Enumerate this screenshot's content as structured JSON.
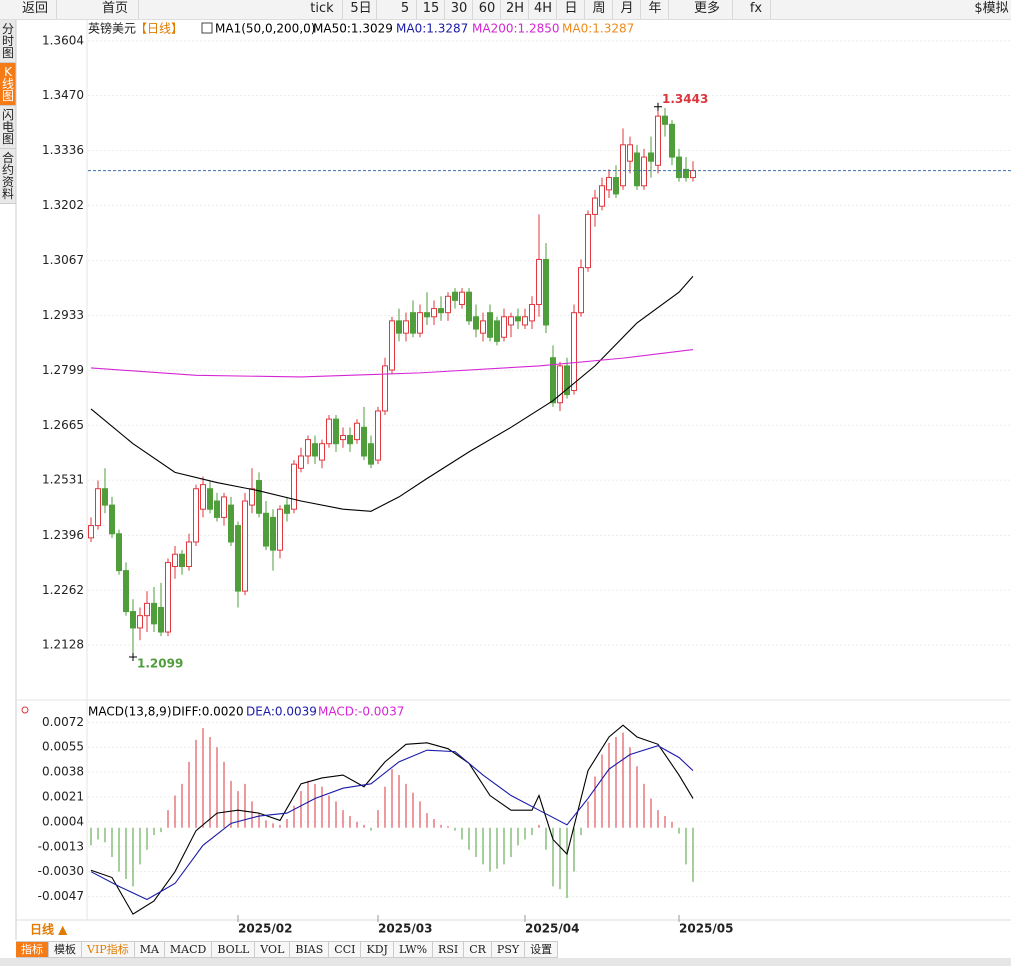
{
  "toolbar": {
    "items": [
      "返回",
      "首页",
      "tick",
      "5日",
      "5",
      "15",
      "30",
      "60",
      "2H",
      "4H",
      "日",
      "周",
      "月",
      "年",
      "更多",
      "fx",
      "$模拟"
    ]
  },
  "sidebar": {
    "items": [
      "分时图",
      "K线图",
      "闪电图",
      "合约资料"
    ],
    "active": 1
  },
  "chart_data": [
    {
      "type": "candlestick",
      "title": "英镑美元",
      "period": "【日线】",
      "legend": [
        {
          "label": "MA1(50,0,200,0)",
          "color": "#000000"
        },
        {
          "label": "MA50:1.3029",
          "color": "#000000"
        },
        {
          "label": "MA0:1.3287",
          "color": "#1a1aa8"
        },
        {
          "label": "MA200:1.2850",
          "color": "#d526d5"
        },
        {
          "label": "MA0:1.3287",
          "color": "#f08a1c"
        }
      ],
      "up_color": "#e0383e",
      "down_color": "#4f9e3b",
      "ohlc": [
        [
          1.239,
          1.244,
          1.238,
          1.242
        ],
        [
          1.242,
          1.253,
          1.241,
          1.251
        ],
        [
          1.251,
          1.256,
          1.245,
          1.247
        ],
        [
          1.247,
          1.249,
          1.239,
          1.24
        ],
        [
          1.24,
          1.241,
          1.23,
          1.231
        ],
        [
          1.231,
          1.233,
          1.22,
          1.221
        ],
        [
          1.221,
          1.224,
          1.2099,
          1.217
        ],
        [
          1.217,
          1.222,
          1.214,
          1.22
        ],
        [
          1.22,
          1.226,
          1.216,
          1.223
        ],
        [
          1.223,
          1.227,
          1.216,
          1.218
        ],
        [
          1.222,
          1.228,
          1.215,
          1.216
        ],
        [
          1.216,
          1.234,
          1.215,
          1.233
        ],
        [
          1.232,
          1.237,
          1.229,
          1.235
        ],
        [
          1.235,
          1.236,
          1.23,
          1.232
        ],
        [
          1.232,
          1.24,
          1.231,
          1.238
        ],
        [
          1.238,
          1.252,
          1.237,
          1.251
        ],
        [
          1.246,
          1.254,
          1.244,
          1.252
        ],
        [
          1.251,
          1.253,
          1.245,
          1.246
        ],
        [
          1.248,
          1.25,
          1.243,
          1.244
        ],
        [
          1.244,
          1.25,
          1.242,
          1.249
        ],
        [
          1.247,
          1.249,
          1.237,
          1.238
        ],
        [
          1.242,
          1.243,
          1.222,
          1.226
        ],
        [
          1.226,
          1.25,
          1.225,
          1.248
        ],
        [
          1.247,
          1.256,
          1.245,
          1.251
        ],
        [
          1.253,
          1.255,
          1.244,
          1.245
        ],
        [
          1.245,
          1.248,
          1.236,
          1.237
        ],
        [
          1.244,
          1.246,
          1.231,
          1.236
        ],
        [
          1.236,
          1.247,
          1.234,
          1.246
        ],
        [
          1.247,
          1.249,
          1.243,
          1.245
        ],
        [
          1.246,
          1.258,
          1.245,
          1.257
        ],
        [
          1.256,
          1.261,
          1.255,
          1.259
        ],
        [
          1.259,
          1.264,
          1.257,
          1.263
        ],
        [
          1.262,
          1.264,
          1.257,
          1.259
        ],
        [
          1.258,
          1.263,
          1.256,
          1.262
        ],
        [
          1.262,
          1.269,
          1.261,
          1.268
        ],
        [
          1.268,
          1.269,
          1.26,
          1.262
        ],
        [
          1.263,
          1.266,
          1.261,
          1.264
        ],
        [
          1.264,
          1.266,
          1.26,
          1.262
        ],
        [
          1.263,
          1.268,
          1.262,
          1.267
        ],
        [
          1.266,
          1.271,
          1.258,
          1.259
        ],
        [
          1.262,
          1.264,
          1.256,
          1.257
        ],
        [
          1.258,
          1.271,
          1.257,
          1.27
        ],
        [
          1.27,
          1.283,
          1.269,
          1.281
        ],
        [
          1.28,
          1.293,
          1.279,
          1.292
        ],
        [
          1.292,
          1.295,
          1.287,
          1.289
        ],
        [
          1.289,
          1.294,
          1.287,
          1.292
        ],
        [
          1.294,
          1.297,
          1.288,
          1.289
        ],
        [
          1.289,
          1.296,
          1.288,
          1.294
        ],
        [
          1.294,
          1.299,
          1.291,
          1.293
        ],
        [
          1.293,
          1.297,
          1.291,
          1.295
        ],
        [
          1.295,
          1.298,
          1.292,
          1.294
        ],
        [
          1.294,
          1.299,
          1.292,
          1.298
        ],
        [
          1.299,
          1.3,
          1.295,
          1.297
        ],
        [
          1.296,
          1.3,
          1.295,
          1.299
        ],
        [
          1.299,
          1.3,
          1.291,
          1.292
        ],
        [
          1.293,
          1.296,
          1.288,
          1.29
        ],
        [
          1.289,
          1.294,
          1.287,
          1.292
        ],
        [
          1.294,
          1.296,
          1.287,
          1.288
        ],
        [
          1.292,
          1.293,
          1.286,
          1.287
        ],
        [
          1.288,
          1.295,
          1.287,
          1.293
        ],
        [
          1.291,
          1.294,
          1.288,
          1.293
        ],
        [
          1.293,
          1.295,
          1.29,
          1.292
        ],
        [
          1.291,
          1.295,
          1.29,
          1.293
        ],
        [
          1.292,
          1.298,
          1.29,
          1.296
        ],
        [
          1.296,
          1.318,
          1.293,
          1.307
        ],
        [
          1.307,
          1.311,
          1.289,
          1.291
        ],
        [
          1.283,
          1.286,
          1.271,
          1.272
        ],
        [
          1.272,
          1.282,
          1.27,
          1.281
        ],
        [
          1.281,
          1.283,
          1.273,
          1.274
        ],
        [
          1.275,
          1.296,
          1.274,
          1.294
        ],
        [
          1.294,
          1.307,
          1.293,
          1.305
        ],
        [
          1.305,
          1.319,
          1.304,
          1.318
        ],
        [
          1.318,
          1.324,
          1.315,
          1.322
        ],
        [
          1.32,
          1.327,
          1.319,
          1.325
        ],
        [
          1.324,
          1.329,
          1.322,
          1.327
        ],
        [
          1.327,
          1.33,
          1.322,
          1.323
        ],
        [
          1.325,
          1.339,
          1.324,
          1.335
        ],
        [
          1.331,
          1.337,
          1.328,
          1.335
        ],
        [
          1.333,
          1.335,
          1.324,
          1.325
        ],
        [
          1.325,
          1.334,
          1.324,
          1.332
        ],
        [
          1.333,
          1.337,
          1.327,
          1.331
        ],
        [
          1.33,
          1.3443,
          1.328,
          1.342
        ],
        [
          1.342,
          1.344,
          1.337,
          1.34
        ],
        [
          1.34,
          1.341,
          1.33,
          1.332
        ],
        [
          1.332,
          1.334,
          1.326,
          1.327
        ],
        [
          1.329,
          1.332,
          1.326,
          1.327
        ],
        [
          1.327,
          1.331,
          1.326,
          1.3287
        ]
      ],
      "lines": [
        {
          "color": "#000000",
          "x": [
            0,
            6,
            12,
            18,
            24,
            30,
            36,
            40,
            44,
            48,
            54,
            60,
            66,
            72,
            78,
            84,
            86
          ],
          "values": [
            1.2705,
            1.262,
            1.255,
            1.2525,
            1.2505,
            1.248,
            1.246,
            1.2455,
            1.249,
            1.2535,
            1.26,
            1.266,
            1.2725,
            1.281,
            1.2915,
            1.299,
            1.3029
          ]
        },
        {
          "color": "#d526d5",
          "x": [
            0,
            15,
            30,
            47,
            64,
            76,
            86
          ],
          "values": [
            1.2805,
            1.2787,
            1.2783,
            1.2793,
            1.281,
            1.2829,
            1.285
          ]
        }
      ],
      "annotations": [
        {
          "x": 81,
          "value": 1.3443,
          "color": "#d9363e"
        },
        {
          "x": 6,
          "value": 1.2099,
          "color": "#4f9e3b"
        }
      ],
      "ylim": [
        1.1994,
        1.3606
      ],
      "yticks": [
        1.3604,
        {
          "value": 1.347,
          "label": "1.3470"
        },
        1.3336,
        1.3202,
        1.3067,
        1.2933,
        1.2799,
        1.2665,
        1.2531,
        1.2396,
        1.2262,
        1.2128
      ],
      "xticks": [
        {
          "value": 21,
          "label": "2025/02"
        },
        {
          "value": 41,
          "label": "2025/03"
        },
        {
          "value": 62,
          "label": "2025/04"
        },
        {
          "value": 84,
          "label": "2025/05"
        }
      ],
      "grid": true
    },
    {
      "type": "macd",
      "legend": [
        {
          "label": "MACD(13,8,9)",
          "color": "#000000"
        },
        {
          "label": "DIFF:0.0020",
          "color": "#000000"
        },
        {
          "label": "DEA:0.0039",
          "color": "#1a1aa8"
        },
        {
          "label": "MACD:-0.0037",
          "color": "#d526d5"
        }
      ],
      "histogram": [
        -0.0012,
        -0.0008,
        -0.001,
        -0.002,
        -0.003,
        -0.0035,
        -0.004,
        -0.0025,
        -0.0015,
        -0.0005,
        -0.0003,
        0.0012,
        0.0022,
        0.003,
        0.0045,
        0.006,
        0.0068,
        0.0062,
        0.0055,
        0.0045,
        0.0032,
        0.0025,
        0.003,
        0.0018,
        0.001,
        0.0005,
        0.0003,
        0.0002,
        0.0006,
        0.0015,
        0.0025,
        0.0032,
        0.003,
        0.0028,
        0.0022,
        0.0018,
        0.0012,
        0.0008,
        0.0004,
        0.0002,
        -0.0002,
        0.0012,
        0.0028,
        0.004,
        0.0036,
        0.003,
        0.0024,
        0.0018,
        0.001,
        0.0006,
        0.0002,
        0.0001,
        -0.0002,
        -0.0008,
        -0.0015,
        -0.002,
        -0.0025,
        -0.003,
        -0.0028,
        -0.0025,
        -0.002,
        -0.0012,
        -0.0008,
        -0.0005,
        0.0002,
        -0.0015,
        -0.004,
        -0.0042,
        -0.0048,
        -0.003,
        -0.0005,
        0.0018,
        0.0035,
        0.005,
        0.0058,
        0.0062,
        0.0065,
        0.0055,
        0.0042,
        0.003,
        0.002,
        0.0012,
        0.0008,
        0.0004,
        -0.0004,
        -0.0025,
        -0.0037
      ],
      "pos_color": "#d9363e",
      "neg_color": "#4f9e3b",
      "lines": [
        {
          "color": "#000000",
          "x": [
            0,
            3,
            6,
            9,
            12,
            15,
            18,
            21,
            24,
            27,
            30,
            33,
            36,
            39,
            42,
            45,
            48,
            51,
            54,
            57,
            60,
            63,
            64,
            66,
            68,
            71,
            74,
            76,
            78,
            81,
            84,
            86
          ],
          "values": [
            -0.0029,
            -0.0034,
            -0.0059,
            -0.005,
            -0.003,
            -0.0002,
            0.001,
            0.0012,
            0.001,
            0.0005,
            0.003,
            0.0034,
            0.0036,
            0.0028,
            0.0045,
            0.0057,
            0.0058,
            0.0054,
            0.0044,
            0.0022,
            0.0012,
            0.0012,
            0.0022,
            -0.0008,
            -0.0018,
            0.0039,
            0.0062,
            0.007,
            0.0062,
            0.0057,
            0.0036,
            0.002
          ]
        },
        {
          "color": "#1a1aa8",
          "x": [
            0,
            4,
            8,
            12,
            16,
            20,
            24,
            28,
            32,
            36,
            40,
            44,
            48,
            52,
            56,
            60,
            64,
            68,
            71,
            74,
            77,
            81,
            84,
            86
          ],
          "values": [
            -0.003,
            -0.004,
            -0.0049,
            -0.0038,
            -0.0012,
            0.0003,
            0.0008,
            0.001,
            0.002,
            0.0027,
            0.003,
            0.0045,
            0.0053,
            0.0052,
            0.0036,
            0.0022,
            0.0012,
            0.0002,
            0.002,
            0.004,
            0.005,
            0.0056,
            0.0048,
            0.0039
          ]
        }
      ],
      "ylim": [
        -0.0063,
        0.0077
      ],
      "yticks": [
        0.0072,
        0.0055,
        0.0038,
        0.0021,
        0.0004,
        -0.0013,
        {
          "value": -0.003,
          "label": "-0.0030"
        },
        -0.0047
      ],
      "grid": true
    }
  ],
  "period_tab": "日线 ▲",
  "tabs": {
    "items": [
      "指标",
      "模板",
      "VIP指标",
      "MA",
      "MACD",
      "BOLL",
      "VOL",
      "BIAS",
      "CCI",
      "KDJ",
      "LW%",
      "RSI",
      "CR",
      "PSY",
      "设置"
    ],
    "active": 0,
    "highlight": 2
  }
}
